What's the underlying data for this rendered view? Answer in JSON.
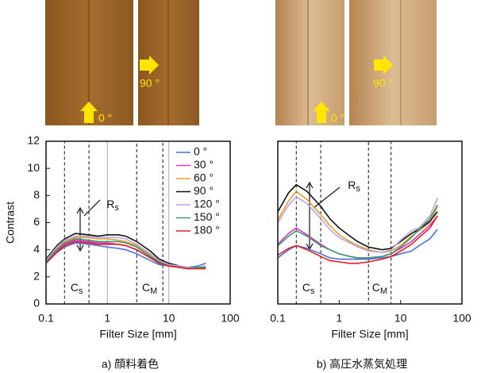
{
  "photos": {
    "left": [
      "0 °",
      "90 °"
    ],
    "right": [
      "0 °",
      "90 °"
    ]
  },
  "chart_data": [
    {
      "type": "line",
      "caption": "a) 顔料着色",
      "xlabel": "Filter Size [mm]",
      "ylabel": "Contrast",
      "log_x": true,
      "xlim": [
        0.1,
        100
      ],
      "xticks": [
        0.1,
        1,
        10,
        100
      ],
      "x_grid": true,
      "ylim": [
        0,
        12
      ],
      "yticks": [
        0,
        2,
        4,
        6,
        8,
        10,
        12
      ],
      "legend": "upper right",
      "x": [
        0.1,
        0.15,
        0.2,
        0.3,
        0.5,
        0.7,
        1,
        1.5,
        2,
        3,
        5,
        7,
        10,
        15,
        20,
        30,
        40
      ],
      "series": [
        {
          "name": "0 °",
          "color": "#4a6fd8",
          "values": [
            3.1,
            3.8,
            4.2,
            4.5,
            4.4,
            4.3,
            4.2,
            4.1,
            4.0,
            3.7,
            3.2,
            2.9,
            2.8,
            2.7,
            2.7,
            2.8,
            3.0
          ]
        },
        {
          "name": "30 °",
          "color": "#e030c8",
          "values": [
            3.1,
            3.9,
            4.4,
            4.7,
            4.6,
            4.5,
            4.5,
            4.4,
            4.3,
            4.0,
            3.4,
            3.0,
            2.8,
            2.7,
            2.6,
            2.7,
            2.7
          ]
        },
        {
          "name": "60 °",
          "color": "#e0a030",
          "values": [
            3.2,
            4.1,
            4.6,
            4.9,
            4.9,
            4.8,
            4.8,
            4.7,
            4.6,
            4.3,
            3.6,
            3.1,
            2.9,
            2.8,
            2.7,
            2.7,
            2.7
          ]
        },
        {
          "name": "90 °",
          "color": "#111111",
          "values": [
            3.3,
            4.3,
            4.8,
            5.2,
            5.1,
            5.0,
            5.1,
            5.1,
            5.0,
            4.6,
            3.9,
            3.3,
            3.0,
            2.8,
            2.7,
            2.7,
            2.7
          ]
        },
        {
          "name": "120 °",
          "color": "#c0a0e8",
          "values": [
            3.2,
            4.2,
            4.7,
            5.0,
            5.0,
            4.9,
            4.9,
            4.9,
            4.8,
            4.4,
            3.7,
            3.2,
            2.9,
            2.8,
            2.7,
            2.7,
            2.8
          ]
        },
        {
          "name": "150 °",
          "color": "#3a9a6a",
          "values": [
            3.1,
            4.0,
            4.5,
            4.8,
            4.7,
            4.6,
            4.6,
            4.6,
            4.5,
            4.2,
            3.5,
            3.1,
            2.8,
            2.7,
            2.6,
            2.7,
            2.7
          ]
        },
        {
          "name": "180 °",
          "color": "#e02020",
          "values": [
            3.0,
            3.8,
            4.3,
            4.6,
            4.5,
            4.4,
            4.4,
            4.4,
            4.3,
            4.0,
            3.4,
            3.0,
            2.8,
            2.7,
            2.6,
            2.6,
            2.6
          ]
        }
      ],
      "regions": [
        {
          "x0": 0.2,
          "x1": 0.5,
          "text": "C",
          "sub": "s"
        },
        {
          "x0": 3,
          "x1": 8,
          "text": "C",
          "sub": "M"
        }
      ],
      "arrow_label": {
        "text": "R",
        "sub": "s"
      }
    },
    {
      "type": "line",
      "caption": "b) 高圧水蒸気処理",
      "xlabel": "Filter Size [mm]",
      "log_x": true,
      "xlim": [
        0.1,
        100
      ],
      "xticks": [
        0.1,
        1,
        10,
        100
      ],
      "x_grid": false,
      "ylim": [
        0,
        12
      ],
      "x": [
        0.1,
        0.15,
        0.2,
        0.3,
        0.5,
        0.7,
        1,
        1.5,
        2,
        3,
        5,
        7,
        10,
        15,
        20,
        30,
        40
      ],
      "series": [
        {
          "color": "#4a6fd8",
          "values": [
            3.4,
            4.0,
            4.3,
            4.1,
            3.7,
            3.4,
            3.3,
            3.3,
            3.3,
            3.3,
            3.4,
            3.5,
            3.7,
            3.9,
            4.3,
            4.8,
            5.5
          ]
        },
        {
          "color": "#e030c8",
          "values": [
            4.4,
            5.2,
            5.6,
            5.1,
            4.4,
            4.0,
            3.7,
            3.5,
            3.4,
            3.4,
            3.5,
            3.7,
            4.1,
            4.6,
            5.1,
            5.8,
            6.5
          ]
        },
        {
          "color": "#e0a030",
          "values": [
            6.2,
            7.6,
            8.3,
            7.7,
            6.6,
            5.8,
            5.1,
            4.6,
            4.3,
            4.0,
            3.8,
            3.9,
            4.3,
            5.0,
            5.4,
            6.0,
            7.2
          ]
        },
        {
          "color": "#111111",
          "values": [
            6.8,
            8.2,
            8.8,
            8.3,
            7.2,
            6.3,
            5.6,
            5.0,
            4.6,
            4.2,
            4.0,
            4.1,
            4.6,
            5.2,
            5.5,
            6.1,
            6.8
          ]
        },
        {
          "color": "#c0a0e8",
          "values": [
            6.0,
            7.3,
            7.9,
            7.4,
            6.3,
            5.5,
            4.9,
            4.5,
            4.2,
            3.9,
            3.8,
            4.0,
            4.7,
            5.4,
            5.6,
            6.5,
            7.8
          ]
        },
        {
          "color": "#3a9a6a",
          "values": [
            4.3,
            5.0,
            5.4,
            5.0,
            4.3,
            4.0,
            3.7,
            3.5,
            3.4,
            3.4,
            3.5,
            3.7,
            4.2,
            4.9,
            5.5,
            6.3,
            7.3
          ]
        },
        {
          "color": "#e02020",
          "values": [
            3.6,
            4.1,
            4.3,
            4.0,
            3.5,
            3.2,
            3.1,
            3.0,
            3.0,
            3.1,
            3.3,
            3.5,
            3.9,
            4.4,
            4.9,
            5.6,
            6.5
          ]
        }
      ],
      "regions": [
        {
          "x0": 0.2,
          "x1": 0.5,
          "text": "C",
          "sub": "s"
        },
        {
          "x0": 3,
          "x1": 7,
          "text": "C",
          "sub": "M"
        }
      ],
      "arrow_label": {
        "text": "R",
        "sub": "s"
      }
    }
  ]
}
